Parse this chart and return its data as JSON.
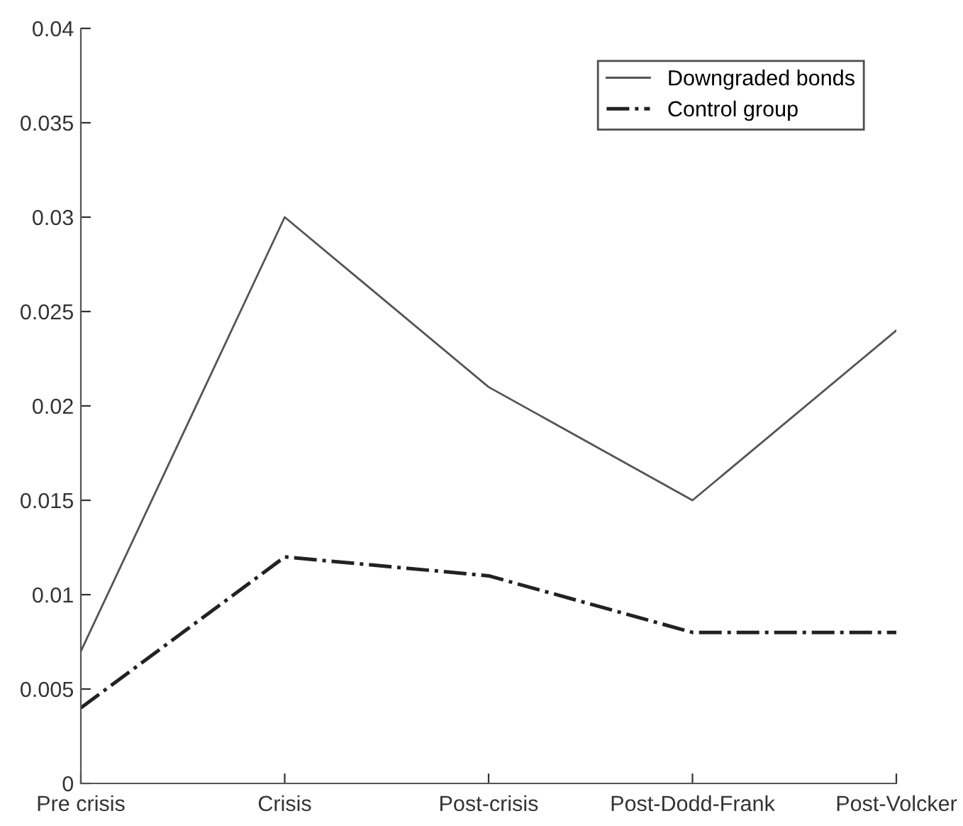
{
  "chart_data": {
    "type": "line",
    "categories": [
      "Pre crisis",
      "Crisis",
      "Post-crisis",
      "Post-Dodd-Frank",
      "Post-Volcker"
    ],
    "series": [
      {
        "name": "Downgraded bonds",
        "color": "#555555",
        "line_style": "solid",
        "values": [
          0.007,
          0.03,
          0.021,
          0.015,
          0.024
        ]
      },
      {
        "name": "Control group",
        "color": "#222222",
        "line_style": "dashdot",
        "values": [
          0.004,
          0.012,
          0.011,
          0.008,
          0.008
        ]
      }
    ],
    "ylim": [
      0,
      0.04
    ],
    "yticks": [
      0,
      0.005,
      0.01,
      0.015,
      0.02,
      0.025,
      0.03,
      0.035,
      0.04
    ],
    "grid": false,
    "legend": "top right"
  }
}
